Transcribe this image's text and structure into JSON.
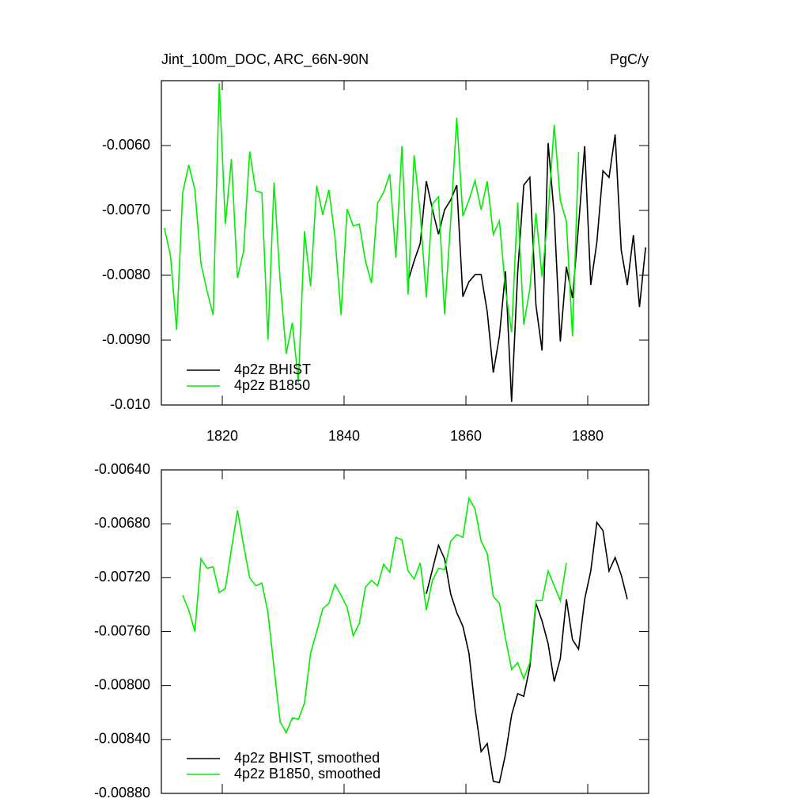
{
  "chart_data": [
    {
      "type": "line",
      "title": "Jint_100m_DOC, ARC_66N-90N",
      "units": "PgC/y",
      "xlim": [
        1810,
        1890
      ],
      "ylim": [
        -0.01,
        -0.005
      ],
      "xticks": [
        1820,
        1840,
        1860,
        1880
      ],
      "yticks": [
        {
          "value": -0.01,
          "label": "-0.010"
        },
        {
          "value": -0.009,
          "label": "-0.0090"
        },
        {
          "value": -0.008,
          "label": "-0.0080"
        },
        {
          "value": -0.007,
          "label": "-0.0070"
        },
        {
          "value": -0.006,
          "label": "-0.0060"
        }
      ],
      "legend": "lower left",
      "series": [
        {
          "name": "4p2z BHIST",
          "color": "#000000",
          "x": [
            1850.5,
            1851.5,
            1852.5,
            1853.5,
            1854.5,
            1855.5,
            1856.5,
            1857.5,
            1858.5,
            1859.5,
            1860.5,
            1861.5,
            1862.5,
            1863.5,
            1864.5,
            1865.5,
            1866.5,
            1867.5,
            1868.5,
            1869.5,
            1870.5,
            1871.5,
            1872.5,
            1873.5,
            1874.5,
            1875.5,
            1876.5,
            1877.5,
            1878.5,
            1879.5,
            1880.5,
            1881.5,
            1882.5,
            1883.5,
            1884.5,
            1885.5,
            1886.5,
            1887.5,
            1888.5,
            1889.5
          ],
          "values": [
            -0.00809,
            -0.00778,
            -0.00751,
            -0.00655,
            -0.00698,
            -0.00737,
            -0.00699,
            -0.00684,
            -0.00661,
            -0.00833,
            -0.0081,
            -0.00799,
            -0.00799,
            -0.00856,
            -0.0095,
            -0.00894,
            -0.00794,
            -0.00995,
            -0.00796,
            -0.00661,
            -0.00649,
            -0.00846,
            -0.00916,
            -0.00596,
            -0.00707,
            -0.00902,
            -0.00787,
            -0.00835,
            -0.00723,
            -0.00601,
            -0.00815,
            -0.00749,
            -0.00639,
            -0.00649,
            -0.00583,
            -0.00761,
            -0.00815,
            -0.00738,
            -0.00849,
            -0.00757
          ]
        },
        {
          "name": "4p2z B1850",
          "color": "#00ee00",
          "x": [
            1810.5,
            1811.5,
            1812.5,
            1813.5,
            1814.5,
            1815.5,
            1816.5,
            1817.5,
            1818.5,
            1819.5,
            1820.5,
            1821.5,
            1822.5,
            1823.5,
            1824.5,
            1825.5,
            1826.5,
            1827.5,
            1828.5,
            1829.5,
            1830.5,
            1831.5,
            1832.5,
            1833.5,
            1834.5,
            1835.5,
            1836.5,
            1837.5,
            1838.5,
            1839.5,
            1840.5,
            1841.5,
            1842.5,
            1843.5,
            1844.5,
            1845.5,
            1846.5,
            1847.5,
            1848.5,
            1849.5,
            1850.5,
            1851.5,
            1852.5,
            1853.5,
            1854.5,
            1855.5,
            1856.5,
            1857.5,
            1858.5,
            1859.5,
            1860.5,
            1861.5,
            1862.5,
            1863.5,
            1864.5,
            1865.5,
            1866.5,
            1867.5,
            1868.5,
            1869.5,
            1870.5,
            1871.5,
            1872.5,
            1873.5,
            1874.5,
            1875.5,
            1876.5,
            1877.5,
            1878.5
          ],
          "values": [
            -0.00727,
            -0.0077,
            -0.00884,
            -0.00673,
            -0.0063,
            -0.00668,
            -0.00782,
            -0.00824,
            -0.00861,
            -0.00504,
            -0.00721,
            -0.00621,
            -0.00804,
            -0.00763,
            -0.00609,
            -0.0067,
            -0.00673,
            -0.00899,
            -0.00657,
            -0.00809,
            -0.00921,
            -0.00873,
            -0.00965,
            -0.00732,
            -0.00817,
            -0.00662,
            -0.00707,
            -0.00668,
            -0.00741,
            -0.00861,
            -0.00698,
            -0.00724,
            -0.00721,
            -0.00778,
            -0.00812,
            -0.00689,
            -0.00672,
            -0.00644,
            -0.00773,
            -0.00601,
            -0.0083,
            -0.00615,
            -0.00705,
            -0.00834,
            -0.0069,
            -0.00679,
            -0.0086,
            -0.00717,
            -0.00557,
            -0.00709,
            -0.00684,
            -0.00654,
            -0.00699,
            -0.00655,
            -0.00737,
            -0.00716,
            -0.00822,
            -0.00888,
            -0.00688,
            -0.00876,
            -0.00821,
            -0.00704,
            -0.00802,
            -0.00705,
            -0.00568,
            -0.00685,
            -0.00717,
            -0.00894,
            -0.0061
          ]
        }
      ]
    },
    {
      "type": "line",
      "xlim": [
        1810,
        1890
      ],
      "ylim": [
        -0.0088,
        -0.0064
      ],
      "yticks": [
        {
          "value": -0.0088,
          "label": "-0.00880"
        },
        {
          "value": -0.0084,
          "label": "-0.00840"
        },
        {
          "value": -0.008,
          "label": "-0.00800"
        },
        {
          "value": -0.0076,
          "label": "-0.00760"
        },
        {
          "value": -0.0072,
          "label": "-0.00720"
        },
        {
          "value": -0.0068,
          "label": "-0.00680"
        },
        {
          "value": -0.0064,
          "label": "-0.00640"
        }
      ],
      "legend": "lower left",
      "series": [
        {
          "name": "4p2z BHIST, smoothed",
          "color": "#000000",
          "x": [
            1853.5,
            1854.5,
            1855.5,
            1856.5,
            1857.5,
            1858.5,
            1859.5,
            1860.5,
            1861.5,
            1862.5,
            1863.5,
            1864.5,
            1865.5,
            1866.5,
            1867.5,
            1868.5,
            1869.5,
            1870.5,
            1871.5,
            1872.5,
            1873.5,
            1874.5,
            1875.5,
            1876.5,
            1877.5,
            1878.5,
            1879.5,
            1880.5,
            1881.5,
            1882.5,
            1883.5,
            1884.5,
            1885.5,
            1886.5
          ],
          "values": [
            -0.00732,
            -0.00714,
            -0.00696,
            -0.00706,
            -0.00732,
            -0.00746,
            -0.00756,
            -0.00776,
            -0.00817,
            -0.00849,
            -0.00843,
            -0.00871,
            -0.00872,
            -0.00851,
            -0.00822,
            -0.00806,
            -0.00808,
            -0.00786,
            -0.00739,
            -0.00752,
            -0.00769,
            -0.00797,
            -0.0078,
            -0.00736,
            -0.00766,
            -0.00773,
            -0.00736,
            -0.00715,
            -0.00679,
            -0.00685,
            -0.00715,
            -0.00705,
            -0.00718,
            -0.00736
          ]
        },
        {
          "name": "4p2z B1850, smoothed",
          "color": "#00ee00",
          "x": [
            1813.5,
            1814.5,
            1815.5,
            1816.5,
            1817.5,
            1818.5,
            1819.5,
            1820.5,
            1821.5,
            1822.5,
            1823.5,
            1824.5,
            1825.5,
            1826.5,
            1827.5,
            1828.5,
            1829.5,
            1830.5,
            1831.5,
            1832.5,
            1833.5,
            1834.5,
            1835.5,
            1836.5,
            1837.5,
            1838.5,
            1839.5,
            1840.5,
            1841.5,
            1842.5,
            1843.5,
            1844.5,
            1845.5,
            1846.5,
            1847.5,
            1848.5,
            1849.5,
            1850.5,
            1851.5,
            1852.5,
            1853.5,
            1854.5,
            1855.5,
            1856.5,
            1857.5,
            1858.5,
            1859.5,
            1860.5,
            1861.5,
            1862.5,
            1863.5,
            1864.5,
            1865.5,
            1866.5,
            1867.5,
            1868.5,
            1869.5,
            1870.5,
            1871.5,
            1872.5,
            1873.5,
            1874.5,
            1875.5,
            1876.5
          ],
          "values": [
            -0.00733,
            -0.00744,
            -0.0076,
            -0.00706,
            -0.00713,
            -0.00712,
            -0.00731,
            -0.00728,
            -0.00699,
            -0.0067,
            -0.00696,
            -0.0072,
            -0.00726,
            -0.00724,
            -0.00746,
            -0.00787,
            -0.00827,
            -0.00835,
            -0.00824,
            -0.00825,
            -0.00813,
            -0.00776,
            -0.0076,
            -0.00743,
            -0.00739,
            -0.00725,
            -0.00733,
            -0.00742,
            -0.00763,
            -0.00754,
            -0.00727,
            -0.00722,
            -0.00726,
            -0.0071,
            -0.00716,
            -0.0069,
            -0.00692,
            -0.00715,
            -0.00721,
            -0.00709,
            -0.00744,
            -0.00722,
            -0.00713,
            -0.00714,
            -0.00693,
            -0.00688,
            -0.0069,
            -0.00661,
            -0.00669,
            -0.00693,
            -0.00702,
            -0.00734,
            -0.00739,
            -0.00765,
            -0.00788,
            -0.00783,
            -0.00795,
            -0.00783,
            -0.00737,
            -0.00737,
            -0.00715,
            -0.00726,
            -0.00737,
            -0.00709
          ]
        }
      ]
    }
  ]
}
